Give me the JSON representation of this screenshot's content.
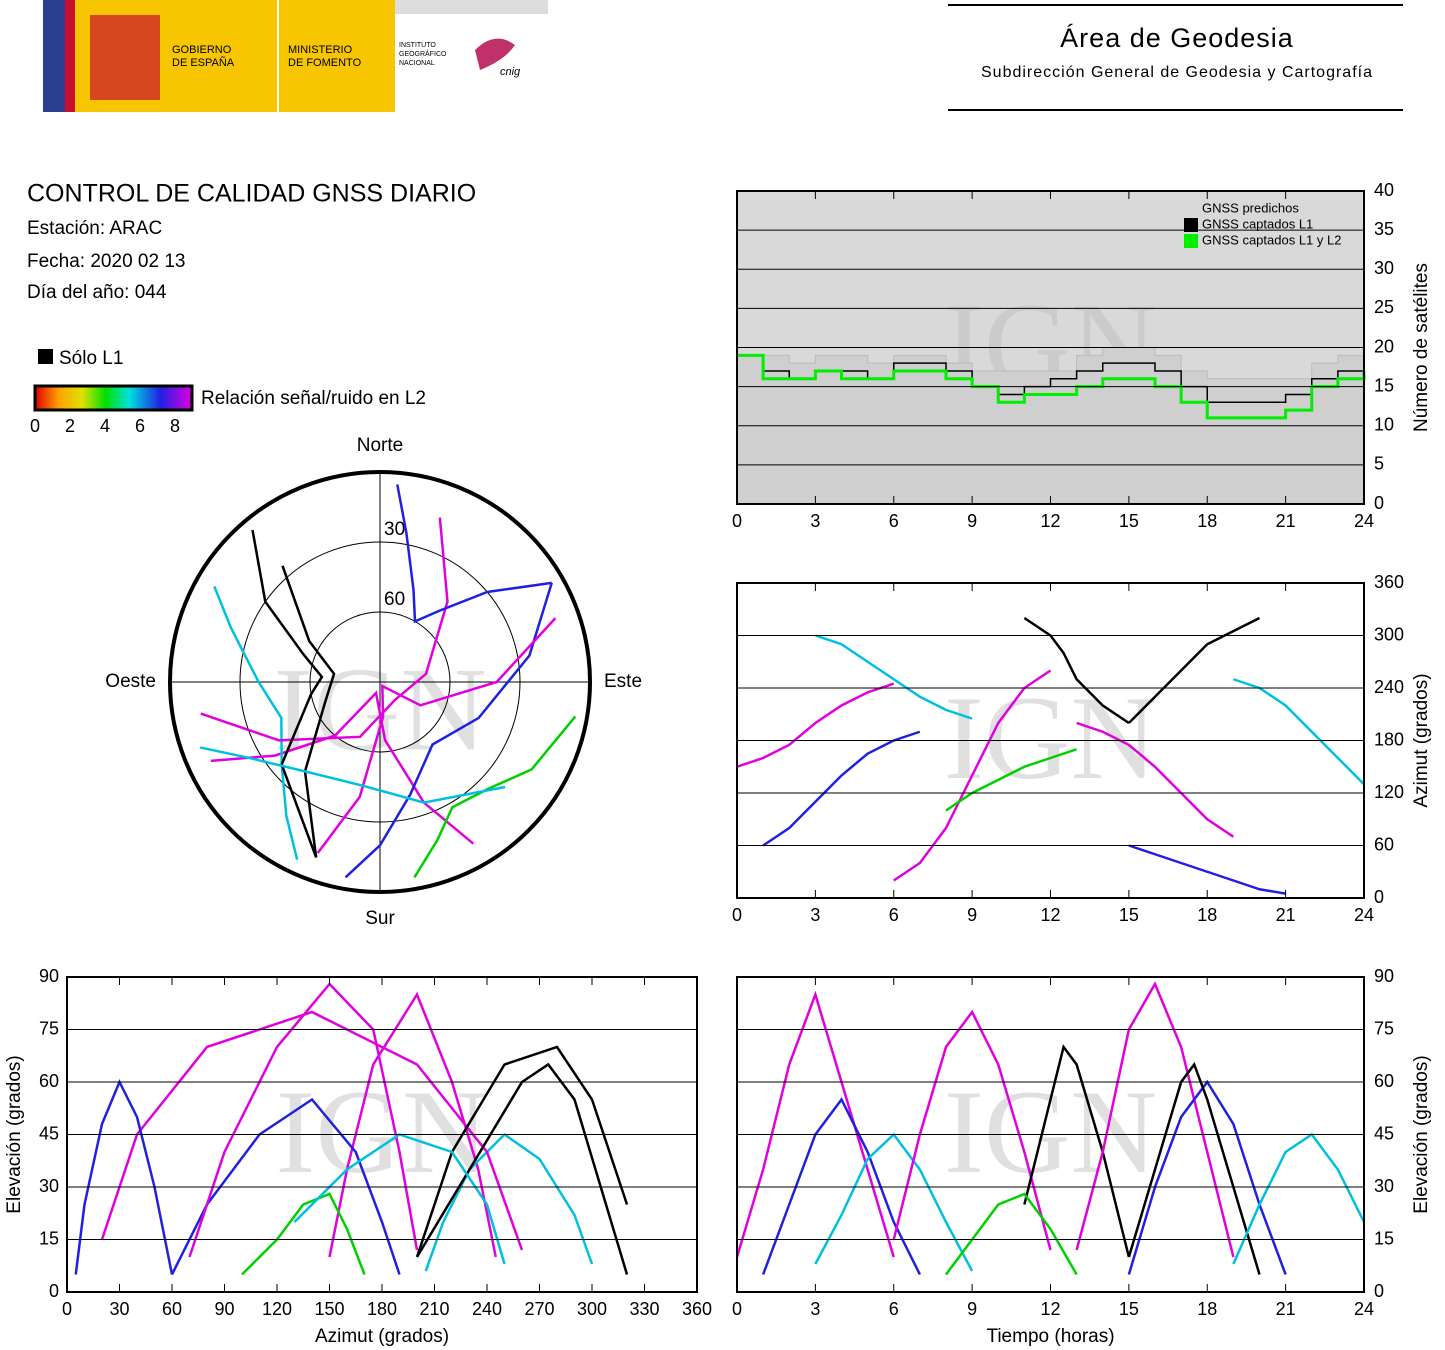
{
  "header": {
    "gobierno": [
      "GOBIERNO",
      "DE ESPAÑA"
    ],
    "ministerio": [
      "MINISTERIO",
      "DE FOMENTO"
    ],
    "instituto": [
      "INSTITUTO",
      "GEOGRÁFICO",
      "NACIONAL"
    ],
    "logo_text": "cnig",
    "area": "Área de Geodesia",
    "subdireccion": "Subdirección General de Geodesia y Cartografía"
  },
  "report": {
    "title": "CONTROL DE CALIDAD GNSS DIARIO",
    "station": "Estación: ARAC",
    "date": "Fecha: 2020 02 13",
    "doy": "Día del año: 044"
  },
  "legend": {
    "l1_only": "Sólo L1",
    "snr_label": "Relación señal/ruido en L2",
    "snr_ticks": [
      0,
      2,
      4,
      6,
      8
    ]
  },
  "watermark": "IGN",
  "satellite_tracks": [
    {
      "color": "#e000e0",
      "t": [
        0,
        1,
        2,
        3,
        4,
        5,
        6
      ],
      "az": [
        150,
        160,
        175,
        200,
        220,
        235,
        245
      ],
      "el": [
        10,
        35,
        65,
        85,
        60,
        35,
        10
      ]
    },
    {
      "color": "#2020e0",
      "t": [
        1,
        2,
        3,
        4,
        5,
        6,
        7
      ],
      "az": [
        60,
        80,
        110,
        140,
        165,
        180,
        190
      ],
      "el": [
        5,
        25,
        45,
        55,
        40,
        20,
        5
      ]
    },
    {
      "color": "#00c0e0",
      "t": [
        3,
        4,
        5,
        6,
        7,
        8,
        9
      ],
      "az": [
        300,
        290,
        270,
        250,
        230,
        215,
        205
      ],
      "el": [
        8,
        22,
        38,
        45,
        35,
        20,
        6
      ]
    },
    {
      "color": "#e000e0",
      "t": [
        6,
        7,
        8,
        9,
        10,
        11,
        12
      ],
      "az": [
        20,
        40,
        80,
        140,
        200,
        240,
        260
      ],
      "el": [
        15,
        45,
        70,
        80,
        65,
        40,
        12
      ]
    },
    {
      "color": "#000000",
      "t": [
        11,
        12,
        12.5,
        13,
        14,
        15
      ],
      "az": [
        320,
        300,
        280,
        250,
        220,
        200
      ],
      "el": [
        25,
        55,
        70,
        65,
        40,
        10
      ]
    },
    {
      "color": "#00d000",
      "t": [
        8,
        9,
        10,
        11,
        12,
        13
      ],
      "az": [
        100,
        120,
        135,
        150,
        160,
        170
      ],
      "el": [
        5,
        15,
        25,
        28,
        18,
        5
      ]
    },
    {
      "color": "#e000e0",
      "t": [
        13,
        14,
        15,
        16,
        17,
        18,
        19
      ],
      "az": [
        200,
        190,
        175,
        150,
        120,
        90,
        70
      ],
      "el": [
        12,
        40,
        75,
        88,
        70,
        40,
        10
      ]
    },
    {
      "color": "#2020e0",
      "t": [
        15,
        16,
        17,
        18,
        19,
        20,
        21
      ],
      "az": [
        60,
        50,
        40,
        30,
        20,
        10,
        5
      ],
      "el": [
        5,
        30,
        50,
        60,
        48,
        25,
        5
      ]
    },
    {
      "color": "#000000",
      "t": [
        15,
        16,
        17,
        17.5,
        18,
        19,
        20
      ],
      "az": [
        200,
        230,
        260,
        275,
        290,
        305,
        320
      ],
      "el": [
        10,
        35,
        60,
        65,
        55,
        30,
        5
      ]
    },
    {
      "color": "#00c0e0",
      "t": [
        19,
        20,
        21,
        22,
        23,
        24
      ],
      "az": [
        250,
        240,
        220,
        190,
        160,
        130
      ],
      "el": [
        8,
        25,
        40,
        45,
        35,
        20
      ]
    }
  ],
  "chart_data": [
    {
      "type": "step",
      "x": [
        0,
        1,
        2,
        3,
        4,
        5,
        6,
        7,
        8,
        9,
        10,
        11,
        12,
        13,
        14,
        15,
        16,
        17,
        18,
        19,
        20,
        21,
        22,
        23,
        24
      ],
      "series": [
        {
          "name": "GNSS predichos",
          "color": "#d9d9d9",
          "values": [
            19,
            19,
            18,
            19,
            19,
            18,
            19,
            19,
            18,
            17,
            17,
            17,
            17,
            19,
            20,
            20,
            19,
            17,
            16,
            16,
            16,
            16,
            18,
            19,
            20
          ]
        },
        {
          "name": "GNSS captados L1",
          "color": "#000000",
          "values": [
            19,
            17,
            16,
            17,
            17,
            16,
            18,
            18,
            17,
            15,
            14,
            15,
            16,
            17,
            18,
            18,
            17,
            15,
            13,
            13,
            13,
            14,
            16,
            17,
            17
          ]
        },
        {
          "name": "GNSS captados L1 y L2",
          "color": "#00ee00",
          "values": [
            19,
            16,
            16,
            17,
            16,
            16,
            17,
            17,
            16,
            15,
            13,
            14,
            14,
            15,
            16,
            16,
            15,
            13,
            11,
            11,
            11,
            12,
            15,
            16,
            17
          ]
        }
      ],
      "xlim": [
        0,
        24
      ],
      "xticks": [
        0,
        3,
        6,
        9,
        12,
        15,
        18,
        21,
        24
      ],
      "ylim": [
        0,
        40
      ],
      "yticks": [
        0,
        5,
        10,
        15,
        20,
        25,
        30,
        35,
        40
      ],
      "ylabel": "Número de satélites"
    },
    {
      "type": "skyplot",
      "north": "Norte",
      "south": "Sur",
      "east": "Este",
      "west": "Oeste",
      "rings": [
        30,
        60
      ]
    },
    {
      "type": "track",
      "xlim": [
        0,
        24
      ],
      "xticks": [
        0,
        3,
        6,
        9,
        12,
        15,
        18,
        21,
        24
      ],
      "ylim": [
        0,
        360
      ],
      "yticks": [
        0,
        60,
        120,
        180,
        240,
        300,
        360
      ],
      "ylabel": "Azimut (grados)"
    },
    {
      "type": "track",
      "xlim": [
        0,
        24
      ],
      "xticks": [
        0,
        3,
        6,
        9,
        12,
        15,
        18,
        21,
        24
      ],
      "ylim": [
        0,
        90
      ],
      "yticks": [
        0,
        15,
        30,
        45,
        60,
        75,
        90
      ],
      "xlabel": "Tiempo (horas)",
      "ylabel": "Elevación (grados)"
    },
    {
      "type": "track",
      "xlim": [
        0,
        360
      ],
      "xticks": [
        0,
        30,
        60,
        90,
        120,
        150,
        180,
        210,
        240,
        270,
        300,
        330,
        360
      ],
      "ylim": [
        0,
        90
      ],
      "yticks": [
        0,
        15,
        30,
        45,
        60,
        75,
        90
      ],
      "xlabel": "Azimut (grados)",
      "ylabel": "Elevación (grados)"
    }
  ]
}
